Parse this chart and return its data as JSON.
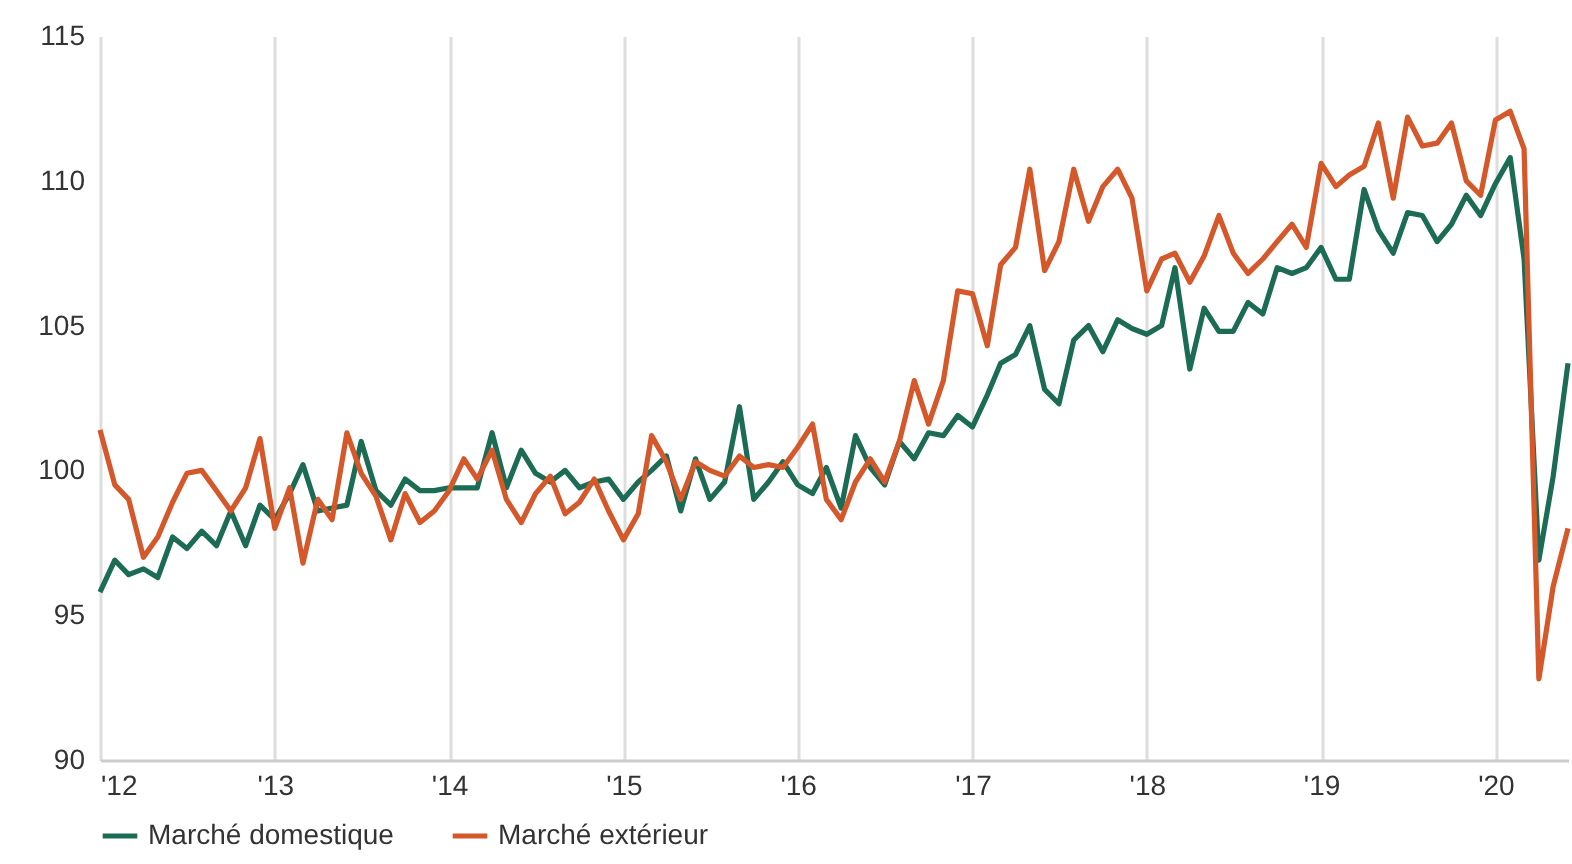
{
  "chart_data": {
    "type": "line",
    "x": [
      "2012-01",
      "2012-02",
      "2012-03",
      "2012-04",
      "2012-05",
      "2012-06",
      "2012-07",
      "2012-08",
      "2012-09",
      "2012-10",
      "2012-11",
      "2012-12",
      "2013-01",
      "2013-02",
      "2013-03",
      "2013-04",
      "2013-05",
      "2013-06",
      "2013-07",
      "2013-08",
      "2013-09",
      "2013-10",
      "2013-11",
      "2013-12",
      "2014-01",
      "2014-02",
      "2014-03",
      "2014-04",
      "2014-05",
      "2014-06",
      "2014-07",
      "2014-08",
      "2014-09",
      "2014-10",
      "2014-11",
      "2014-12",
      "2015-01",
      "2015-02",
      "2015-03",
      "2015-04",
      "2015-05",
      "2015-06",
      "2015-07",
      "2015-08",
      "2015-09",
      "2015-10",
      "2015-11",
      "2015-12",
      "2016-01",
      "2016-02",
      "2016-03",
      "2016-04",
      "2016-05",
      "2016-06",
      "2016-07",
      "2016-08",
      "2016-09",
      "2016-10",
      "2016-11",
      "2016-12",
      "2017-01",
      "2017-02",
      "2017-03",
      "2017-04",
      "2017-05",
      "2017-06",
      "2017-07",
      "2017-08",
      "2017-09",
      "2017-10",
      "2017-11",
      "2017-12",
      "2018-01",
      "2018-02",
      "2018-03",
      "2018-04",
      "2018-05",
      "2018-06",
      "2018-07",
      "2018-08",
      "2018-09",
      "2018-10",
      "2018-11",
      "2018-12",
      "2019-01",
      "2019-02",
      "2019-03",
      "2019-04",
      "2019-05",
      "2019-06",
      "2019-07",
      "2019-08",
      "2019-09",
      "2019-10",
      "2019-11",
      "2019-12",
      "2020-01",
      "2020-02",
      "2020-03",
      "2020-04",
      "2020-05",
      "2020-06"
    ],
    "series": [
      {
        "name": "Marché domestique",
        "color": "#1b6b55",
        "values": [
          95.8,
          96.9,
          96.4,
          96.6,
          96.3,
          97.7,
          97.3,
          97.9,
          97.4,
          98.6,
          97.4,
          98.8,
          98.3,
          99.2,
          100.2,
          98.6,
          98.7,
          98.8,
          101.0,
          99.3,
          98.8,
          99.7,
          99.3,
          99.3,
          99.4,
          99.4,
          99.4,
          101.3,
          99.4,
          100.7,
          99.9,
          99.6,
          100.0,
          99.4,
          99.6,
          99.7,
          99.0,
          99.6,
          100.0,
          100.5,
          98.6,
          100.4,
          99.0,
          99.6,
          102.2,
          99.0,
          99.6,
          100.3,
          99.5,
          99.2,
          100.1,
          98.7,
          101.2,
          100.1,
          99.5,
          101.0,
          100.4,
          101.3,
          101.2,
          101.9,
          101.5,
          102.6,
          103.7,
          104.0,
          105.0,
          102.8,
          102.3,
          104.5,
          105.0,
          104.1,
          105.2,
          104.9,
          104.7,
          105.0,
          107.0,
          103.5,
          105.6,
          104.8,
          104.8,
          105.8,
          105.4,
          107.0,
          106.8,
          107.0,
          107.7,
          106.6,
          106.6,
          109.7,
          108.3,
          107.5,
          108.9,
          108.8,
          107.9,
          108.5,
          109.5,
          108.8,
          109.9,
          110.8,
          107.3,
          96.9,
          99.8,
          103.7
        ]
      },
      {
        "name": "Marché extérieur",
        "color": "#d4582a",
        "values": [
          101.4,
          99.5,
          99.0,
          97.0,
          97.7,
          98.9,
          99.9,
          100.0,
          99.3,
          98.6,
          99.4,
          101.1,
          98.0,
          99.4,
          96.8,
          99.0,
          98.3,
          101.3,
          99.9,
          99.1,
          97.6,
          99.2,
          98.2,
          98.6,
          99.3,
          100.4,
          99.7,
          100.7,
          99.0,
          98.2,
          99.2,
          99.8,
          98.5,
          98.9,
          99.7,
          98.6,
          97.6,
          98.5,
          101.2,
          100.3,
          99.0,
          100.3,
          100.0,
          99.8,
          100.5,
          100.1,
          100.2,
          100.1,
          100.8,
          101.6,
          99.0,
          98.3,
          99.6,
          100.4,
          99.6,
          101.0,
          103.1,
          101.6,
          103.1,
          106.2,
          106.1,
          104.3,
          107.1,
          107.7,
          110.4,
          106.9,
          107.9,
          110.4,
          108.6,
          109.8,
          110.4,
          109.4,
          106.2,
          107.3,
          107.5,
          106.5,
          107.4,
          108.8,
          107.5,
          106.8,
          107.3,
          107.9,
          108.5,
          107.7,
          110.6,
          109.8,
          110.2,
          110.5,
          112.0,
          109.4,
          112.2,
          111.2,
          111.3,
          112.0,
          110.0,
          109.5,
          112.1,
          112.4,
          111.1,
          92.8,
          96.0,
          98.0
        ]
      }
    ],
    "xlim": [
      "2012-01",
      "2020-06"
    ],
    "xticks": [
      {
        "value": "2012",
        "label": "'12"
      },
      {
        "value": "2013",
        "label": "'13"
      },
      {
        "value": "2014",
        "label": "'14"
      },
      {
        "value": "2015",
        "label": "'15"
      },
      {
        "value": "2016",
        "label": "'16"
      },
      {
        "value": "2017",
        "label": "'17"
      },
      {
        "value": "2018",
        "label": "'18"
      },
      {
        "value": "2019",
        "label": "'19"
      },
      {
        "value": "2020",
        "label": "'20"
      }
    ],
    "ylim": [
      90,
      115
    ],
    "yticks": [
      90,
      95,
      100,
      105,
      110,
      115
    ],
    "grid": "x",
    "legend": "bottom",
    "marker": "none",
    "line_style": "solid"
  }
}
